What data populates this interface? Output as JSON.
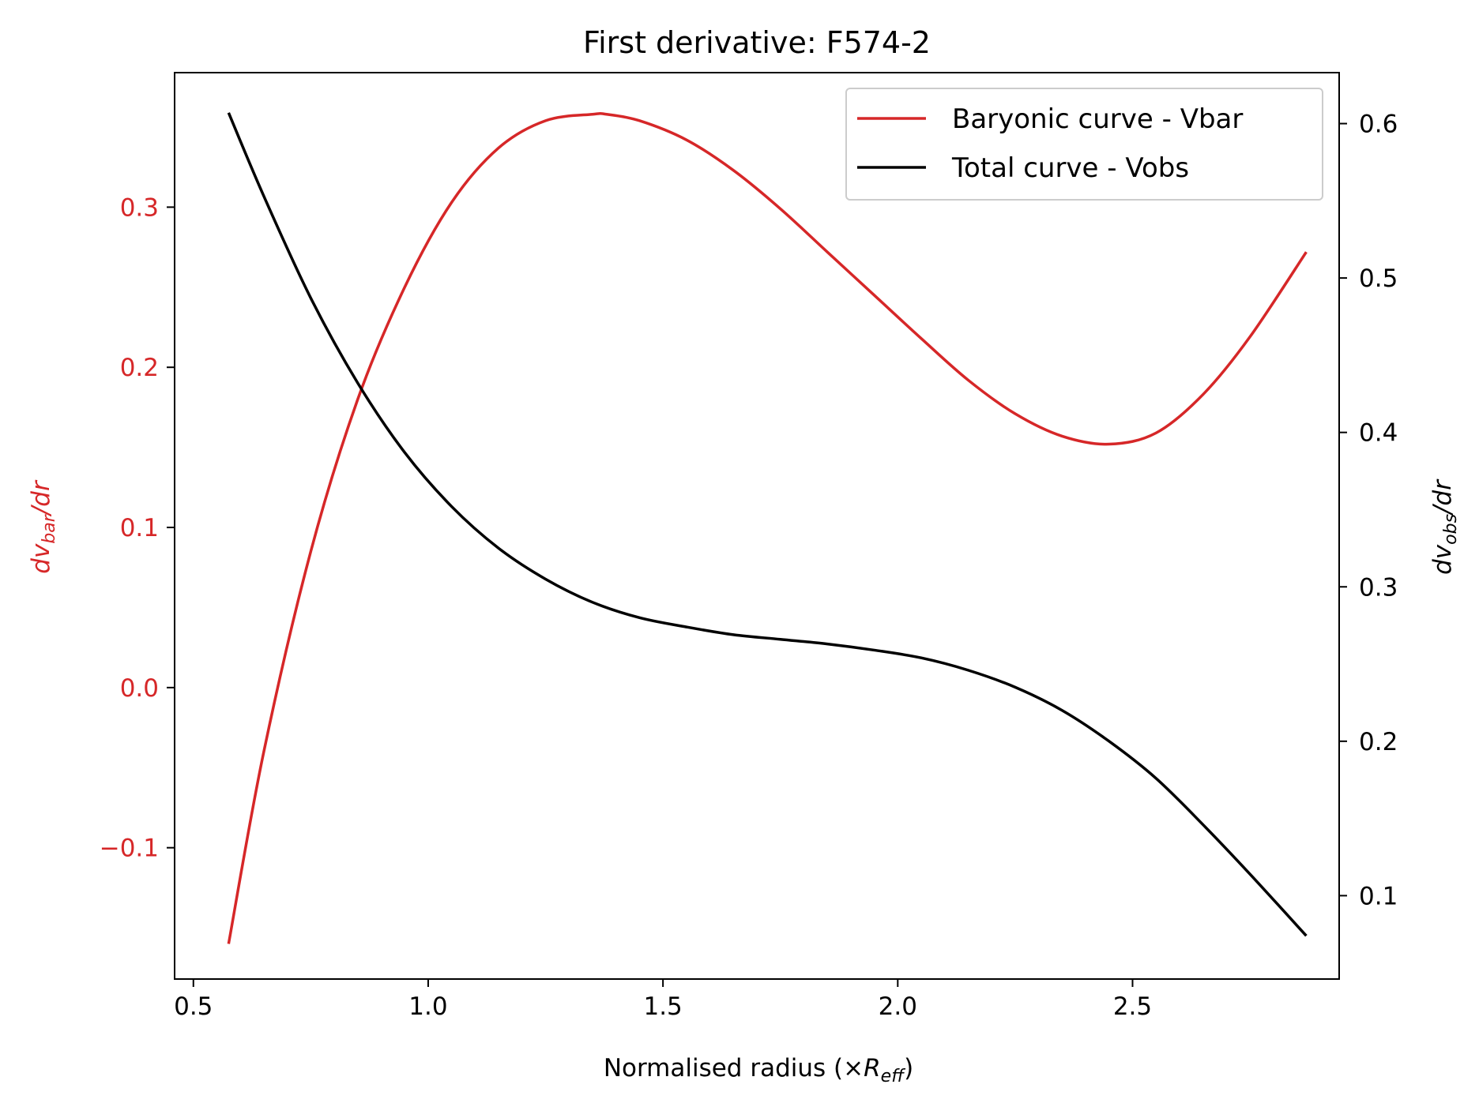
{
  "chart_data": {
    "type": "line",
    "title": "First derivative: F574-2",
    "xlabel": {
      "main": "Normalised radius (×",
      "sym": "R",
      "sub": "eff",
      "close": ")"
    },
    "ylabel_left": {
      "d": "dv",
      "sub": "bar",
      "rest": "/dr"
    },
    "ylabel_right": {
      "d": "dv",
      "sub": "obs",
      "rest": "/dr"
    },
    "xlim": [
      0.46,
      2.94
    ],
    "ylim_left": [
      -0.182,
      0.384
    ],
    "ylim_right": [
      0.046,
      0.633
    ],
    "x_ticks": [
      0.5,
      1.0,
      1.5,
      2.0,
      2.5
    ],
    "x_tick_labels": [
      "0.5",
      "1.0",
      "1.5",
      "2.0",
      "2.5"
    ],
    "y_left_ticks": [
      -0.1,
      0.0,
      0.1,
      0.2,
      0.3
    ],
    "y_left_tick_labels": [
      "−0.1",
      "0.0",
      "0.1",
      "0.2",
      "0.3"
    ],
    "y_right_ticks": [
      0.1,
      0.2,
      0.3,
      0.4,
      0.5,
      0.6
    ],
    "y_right_tick_labels": [
      "0.1",
      "0.2",
      "0.3",
      "0.4",
      "0.5",
      "0.6"
    ],
    "legend_position": "top-right",
    "grid": false,
    "series": [
      {
        "name": "Baryonic curve - Vbar",
        "axis": "left",
        "color": "#d62728",
        "x": [
          0.575,
          0.65,
          0.75,
          0.85,
          0.95,
          1.05,
          1.15,
          1.25,
          1.35,
          1.38,
          1.45,
          1.55,
          1.65,
          1.75,
          1.85,
          1.95,
          2.05,
          2.15,
          2.25,
          2.35,
          2.45,
          2.55,
          2.65,
          2.75,
          2.87
        ],
        "y": [
          -0.16,
          -0.04,
          0.085,
          0.18,
          0.25,
          0.303,
          0.337,
          0.354,
          0.358,
          0.358,
          0.354,
          0.342,
          0.323,
          0.299,
          0.272,
          0.245,
          0.218,
          0.192,
          0.171,
          0.157,
          0.152,
          0.159,
          0.183,
          0.219,
          0.272
        ]
      },
      {
        "name": "Total curve - Vobs",
        "axis": "right",
        "color": "#000000",
        "x": [
          0.575,
          0.65,
          0.75,
          0.85,
          0.95,
          1.05,
          1.15,
          1.25,
          1.35,
          1.45,
          1.55,
          1.65,
          1.75,
          1.85,
          1.95,
          2.05,
          2.15,
          2.25,
          2.35,
          2.45,
          2.55,
          2.65,
          2.75,
          2.87
        ],
        "y": [
          0.607,
          0.553,
          0.487,
          0.432,
          0.387,
          0.352,
          0.325,
          0.305,
          0.29,
          0.28,
          0.274,
          0.269,
          0.266,
          0.263,
          0.259,
          0.254,
          0.246,
          0.235,
          0.22,
          0.2,
          0.176,
          0.146,
          0.114,
          0.074
        ]
      }
    ]
  }
}
